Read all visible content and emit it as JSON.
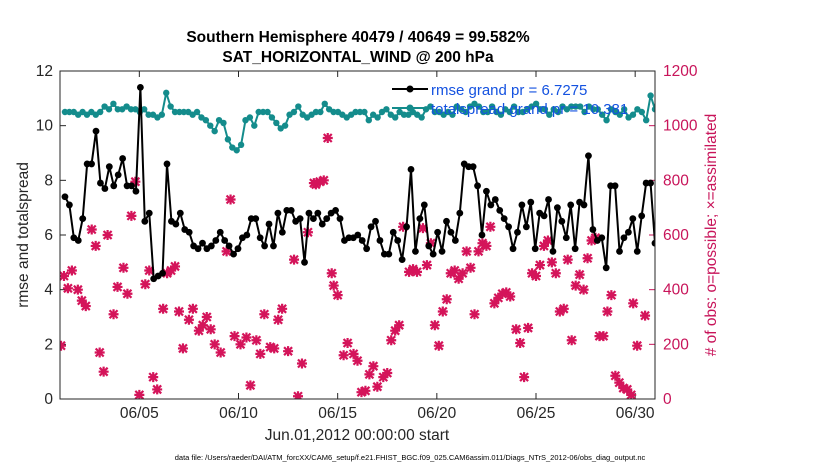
{
  "chart_data": {
    "type": "line",
    "title": "Southern Hemisphere 40479 / 40649 = 99.582%",
    "subtitle": "SAT_HORIZONTAL_WIND @ 200 hPa",
    "xlabel": "Jun.01,2012 00:00:00 start",
    "ylabel": "rmse and totalspread",
    "y2label": "# of obs: o=possible; ×=assimilated",
    "footnote": "data file: /Users/raeder/DAI/ATM_forcXX/CAM6_setup/f.e21.FHIST_BGC.f09_025.CAM6assim.011/Diags_NTrS_2012-06/obs_diag_output.nc",
    "x_unit": "day of June 2012",
    "xlim": [
      1,
      31
    ],
    "ylim": [
      0,
      12
    ],
    "y2lim": [
      0,
      1200
    ],
    "xticks": [
      5,
      10,
      15,
      20,
      25,
      30
    ],
    "xtick_labels": [
      "06/05",
      "06/10",
      "06/15",
      "06/20",
      "06/25",
      "06/30"
    ],
    "yticks": [
      0,
      2,
      4,
      6,
      8,
      10,
      12
    ],
    "y2ticks": [
      0,
      200,
      400,
      600,
      800,
      1000,
      1200
    ],
    "legend_position": "top-right",
    "colors": {
      "rmse": "#000000",
      "totalspread": "#148c8c",
      "obs": "#d4145a",
      "right_axis": "#c8145a",
      "legend_text": "#1452e0"
    },
    "series": [
      {
        "name": "rmse grand pr = 6.7275",
        "color": "#000000",
        "marker": "star",
        "values": [
          7.4,
          7.1,
          5.9,
          5.8,
          6.6,
          8.6,
          8.6,
          9.8,
          7.9,
          7.7,
          8.5,
          7.8,
          8.2,
          8.8,
          7.8,
          7.8,
          7.6,
          11.4,
          6.5,
          6.8,
          4.4,
          4.5,
          4.6,
          8.6,
          6.5,
          6.4,
          6.8,
          6.2,
          6.1,
          5.6,
          5.5,
          5.7,
          5.5,
          5.6,
          5.8,
          6.1,
          5.8,
          5.6,
          5.3,
          5.5,
          5.9,
          6.0,
          6.6,
          6.6,
          5.9,
          5.6,
          6.4,
          5.6,
          6.8,
          6.1,
          6.9,
          6.9,
          6.5,
          6.6,
          5.0,
          6.8,
          6.6,
          6.8,
          6.4,
          6.6,
          6.8,
          6.9,
          6.6,
          5.8,
          5.9,
          5.9,
          6.0,
          5.8,
          5.5,
          6.3,
          6.5,
          5.8,
          5.3,
          5.3,
          6.1,
          5.8,
          5.1,
          6.3,
          8.4,
          5.4,
          6.6,
          7.1,
          5.6,
          5.3,
          6.1,
          5.4,
          6.5,
          6.1,
          5.8,
          6.8,
          8.6,
          8.5,
          8.5,
          7.8,
          6.0,
          7.6,
          7.1,
          7.3,
          6.9,
          6.6,
          6.3,
          5.5,
          6.1,
          7.1,
          6.3,
          7.2,
          5.5,
          6.8,
          6.7,
          7.3,
          5.4,
          7.0,
          6.5,
          5.9,
          7.1,
          5.5,
          7.2,
          7.1,
          8.9,
          6.2,
          5.8,
          5.9,
          4.8,
          7.8,
          7.8,
          5.4,
          5.9,
          6.1,
          6.6,
          5.4,
          6.7,
          7.9,
          7.9,
          5.7
        ]
      },
      {
        "name": "totalspread grand pr = 10.381",
        "color": "#148c8c",
        "marker": "circle",
        "values": [
          10.5,
          10.5,
          10.5,
          10.4,
          10.5,
          10.4,
          10.5,
          10.4,
          10.5,
          10.7,
          10.6,
          10.8,
          10.6,
          10.6,
          10.7,
          10.6,
          10.6,
          10.5,
          10.6,
          10.4,
          10.4,
          10.3,
          10.4,
          11.2,
          10.7,
          10.5,
          10.5,
          10.5,
          10.5,
          10.4,
          10.5,
          10.3,
          10.2,
          10.0,
          9.8,
          10.2,
          10.1,
          9.5,
          9.2,
          9.1,
          9.3,
          10.2,
          10.3,
          10.0,
          10.5,
          10.5,
          10.5,
          10.3,
          10.1,
          9.9,
          10.0,
          10.4,
          10.5,
          10.7,
          10.4,
          10.3,
          10.4,
          10.5,
          10.5,
          10.8,
          10.6,
          10.5,
          10.5,
          10.4,
          10.3,
          10.4,
          10.5,
          10.5,
          10.5,
          10.2,
          10.4,
          10.3,
          10.5,
          10.6,
          10.4,
          10.3,
          10.5,
          10.4,
          10.4,
          10.5,
          10.4,
          10.3,
          10.6,
          10.7,
          10.5,
          10.5,
          10.4,
          10.5,
          10.4,
          10.7,
          10.6,
          10.5,
          10.7,
          10.8,
          10.7,
          10.5,
          10.5,
          10.7,
          10.5,
          10.4,
          10.6,
          10.5,
          10.7,
          10.5,
          10.5,
          10.6,
          10.7,
          10.8,
          10.6,
          10.6,
          10.4,
          10.6,
          10.5,
          10.7,
          10.6,
          10.7,
          10.7,
          10.7,
          10.5,
          10.7,
          10.6,
          10.6,
          10.4,
          10.2,
          10.6,
          10.5,
          10.4,
          10.6,
          10.3,
          10.4,
          10.6,
          10.5,
          10.2,
          11.1,
          10.6
        ]
      },
      {
        "name": "obs assimilated",
        "axis": "right",
        "color": "#d4145a",
        "marker": "x",
        "points": [
          [
            1.05,
            195
          ],
          [
            1.2,
            450
          ],
          [
            1.4,
            405
          ],
          [
            1.6,
            470
          ],
          [
            1.9,
            400
          ],
          [
            2.1,
            360
          ],
          [
            2.3,
            340
          ],
          [
            2.6,
            620
          ],
          [
            2.8,
            560
          ],
          [
            3.0,
            170
          ],
          [
            3.2,
            100
          ],
          [
            3.4,
            600
          ],
          [
            3.7,
            310
          ],
          [
            3.9,
            410
          ],
          [
            4.2,
            480
          ],
          [
            4.4,
            385
          ],
          [
            4.6,
            670
          ],
          [
            4.8,
            795
          ],
          [
            5.0,
            15
          ],
          [
            5.3,
            420
          ],
          [
            5.5,
            470
          ],
          [
            5.7,
            80
          ],
          [
            5.9,
            35
          ],
          [
            6.2,
            330
          ],
          [
            6.4,
            460
          ],
          [
            6.6,
            470
          ],
          [
            6.8,
            485
          ],
          [
            7.0,
            320
          ],
          [
            7.2,
            185
          ],
          [
            7.5,
            290
          ],
          [
            7.7,
            330
          ],
          [
            8.0,
            250
          ],
          [
            8.2,
            270
          ],
          [
            8.4,
            300
          ],
          [
            8.6,
            255
          ],
          [
            8.8,
            200
          ],
          [
            9.1,
            170
          ],
          [
            9.4,
            540
          ],
          [
            9.6,
            730
          ],
          [
            9.8,
            230
          ],
          [
            10.1,
            200
          ],
          [
            10.4,
            225
          ],
          [
            10.6,
            50
          ],
          [
            10.9,
            215
          ],
          [
            11.1,
            165
          ],
          [
            11.3,
            310
          ],
          [
            11.6,
            190
          ],
          [
            11.8,
            185
          ],
          [
            12.0,
            290
          ],
          [
            12.2,
            330
          ],
          [
            12.5,
            175
          ],
          [
            12.8,
            510
          ],
          [
            13.0,
            10
          ],
          [
            13.2,
            130
          ],
          [
            13.5,
            610
          ],
          [
            13.8,
            790
          ],
          [
            13.9,
            785
          ],
          [
            14.1,
            795
          ],
          [
            14.3,
            800
          ],
          [
            14.5,
            955
          ],
          [
            14.7,
            460
          ],
          [
            14.8,
            415
          ],
          [
            15.0,
            380
          ],
          [
            15.3,
            160
          ],
          [
            15.5,
            205
          ],
          [
            15.8,
            165
          ],
          [
            16.0,
            140
          ],
          [
            16.2,
            25
          ],
          [
            16.4,
            30
          ],
          [
            16.6,
            90
          ],
          [
            16.8,
            120
          ],
          [
            17.0,
            45
          ],
          [
            17.3,
            80
          ],
          [
            17.5,
            95
          ],
          [
            17.7,
            215
          ],
          [
            17.9,
            250
          ],
          [
            18.1,
            270
          ],
          [
            18.3,
            630
          ],
          [
            18.6,
            465
          ],
          [
            18.8,
            475
          ],
          [
            19.0,
            465
          ],
          [
            19.3,
            625
          ],
          [
            19.5,
            490
          ],
          [
            19.7,
            570
          ],
          [
            19.9,
            270
          ],
          [
            20.1,
            195
          ],
          [
            20.3,
            320
          ],
          [
            20.5,
            365
          ],
          [
            20.7,
            460
          ],
          [
            20.9,
            470
          ],
          [
            21.1,
            440
          ],
          [
            21.3,
            460
          ],
          [
            21.5,
            540
          ],
          [
            21.7,
            480
          ],
          [
            21.9,
            310
          ],
          [
            22.1,
            540
          ],
          [
            22.3,
            570
          ],
          [
            22.5,
            560
          ],
          [
            22.7,
            630
          ],
          [
            22.9,
            350
          ],
          [
            23.1,
            370
          ],
          [
            23.3,
            385
          ],
          [
            23.5,
            390
          ],
          [
            23.7,
            375
          ],
          [
            24.0,
            255
          ],
          [
            24.2,
            205
          ],
          [
            24.4,
            80
          ],
          [
            24.6,
            260
          ],
          [
            24.8,
            460
          ],
          [
            25.0,
            450
          ],
          [
            25.2,
            490
          ],
          [
            25.4,
            560
          ],
          [
            25.6,
            580
          ],
          [
            25.8,
            500
          ],
          [
            26.0,
            460
          ],
          [
            26.2,
            320
          ],
          [
            26.4,
            330
          ],
          [
            26.6,
            510
          ],
          [
            26.8,
            215
          ],
          [
            27.0,
            415
          ],
          [
            27.2,
            455
          ],
          [
            27.4,
            400
          ],
          [
            27.6,
            515
          ],
          [
            27.8,
            580
          ],
          [
            28.0,
            590
          ],
          [
            28.2,
            230
          ],
          [
            28.4,
            230
          ],
          [
            28.6,
            320
          ],
          [
            28.8,
            380
          ],
          [
            29.0,
            85
          ],
          [
            29.2,
            60
          ],
          [
            29.4,
            40
          ],
          [
            29.6,
            35
          ],
          [
            29.8,
            15
          ],
          [
            29.9,
            350
          ],
          [
            30.1,
            195
          ],
          [
            30.5,
            305
          ]
        ]
      }
    ]
  }
}
